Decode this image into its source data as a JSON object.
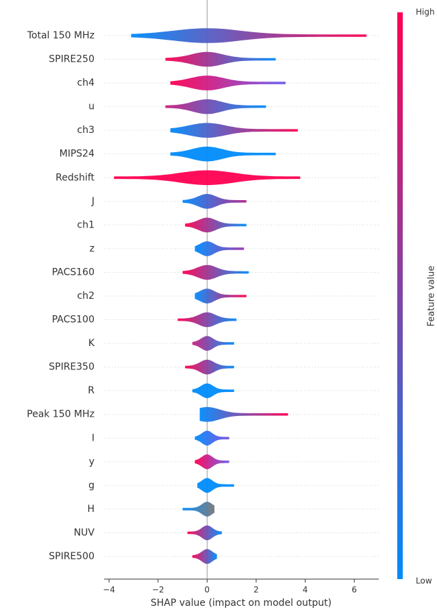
{
  "chart_data": {
    "type": "beeswarm",
    "xlabel": "SHAP value (impact on model output)",
    "xlim": [
      -4.2,
      7.0
    ],
    "xticks": [
      {
        "value": -4,
        "label": "−4"
      },
      {
        "value": -2,
        "label": "−2"
      },
      0,
      2,
      4,
      6
    ],
    "colorbar": {
      "label": "Feature value",
      "high": "High",
      "low": "Low",
      "colors": [
        "#008bfb",
        "#ff0051"
      ]
    },
    "features": [
      {
        "name": "Total 150 MHz",
        "min": -3.1,
        "max": 6.5,
        "colors": [
          "#008bfb",
          "#ff0051"
        ]
      },
      {
        "name": "SPIRE250",
        "min": -1.7,
        "max": 2.8,
        "colors": [
          "#ff0051",
          "#008bfb"
        ]
      },
      {
        "name": "ch4",
        "min": -1.5,
        "max": 3.2,
        "colors": [
          "#ff0051",
          "#6a5cf0"
        ]
      },
      {
        "name": "u",
        "min": -1.7,
        "max": 2.4,
        "colors": [
          "#c8207d",
          "#008bfb"
        ]
      },
      {
        "name": "ch3",
        "min": -1.5,
        "max": 3.7,
        "colors": [
          "#008bfb",
          "#ff0051"
        ]
      },
      {
        "name": "MIPS24",
        "min": -1.5,
        "max": 2.8,
        "colors": [
          "#008bfb",
          "#008bfb"
        ]
      },
      {
        "name": "Redshift",
        "min": -3.8,
        "max": 3.8,
        "colors": [
          "#ff0051",
          "#ff0051"
        ]
      },
      {
        "name": "J",
        "min": -1.0,
        "max": 1.6,
        "colors": [
          "#008bfb",
          "#b0248a"
        ]
      },
      {
        "name": "ch1",
        "min": -0.9,
        "max": 1.6,
        "colors": [
          "#ff0051",
          "#008bfb"
        ]
      },
      {
        "name": "z",
        "min": -0.5,
        "max": 1.5,
        "colors": [
          "#008bfb",
          "#9838b0"
        ]
      },
      {
        "name": "PACS160",
        "min": -1.0,
        "max": 1.7,
        "colors": [
          "#ff0051",
          "#008bfb"
        ]
      },
      {
        "name": "ch2",
        "min": -0.5,
        "max": 1.6,
        "colors": [
          "#008bfb",
          "#ff0051"
        ]
      },
      {
        "name": "PACS100",
        "min": -1.2,
        "max": 1.2,
        "colors": [
          "#ff0051",
          "#008bfb"
        ]
      },
      {
        "name": "K",
        "min": -0.6,
        "max": 1.1,
        "colors": [
          "#c8207d",
          "#008bfb"
        ]
      },
      {
        "name": "SPIRE350",
        "min": -0.9,
        "max": 1.1,
        "colors": [
          "#ff0051",
          "#008bfb"
        ]
      },
      {
        "name": "R",
        "min": -0.6,
        "max": 1.1,
        "colors": [
          "#008bfb",
          "#008bfb"
        ]
      },
      {
        "name": "Peak 150 MHz",
        "min": -0.3,
        "max": 3.3,
        "colors": [
          "#008bfb",
          "#ff0051"
        ]
      },
      {
        "name": "I",
        "min": -0.5,
        "max": 0.9,
        "colors": [
          "#008bfb",
          "#7a50e0"
        ]
      },
      {
        "name": "y",
        "min": -0.5,
        "max": 0.9,
        "colors": [
          "#ff0051",
          "#6a5cf0"
        ]
      },
      {
        "name": "g",
        "min": -0.4,
        "max": 1.1,
        "colors": [
          "#008bfb",
          "#008bfb"
        ]
      },
      {
        "name": "H",
        "min": -1.0,
        "max": 0.3,
        "colors": [
          "#008bfb",
          "#777777"
        ]
      },
      {
        "name": "NUV",
        "min": -0.8,
        "max": 0.6,
        "colors": [
          "#ff0051",
          "#008bfb"
        ]
      },
      {
        "name": "SPIRE500",
        "min": -0.6,
        "max": 0.4,
        "colors": [
          "#ff0051",
          "#008bfb"
        ]
      }
    ]
  }
}
